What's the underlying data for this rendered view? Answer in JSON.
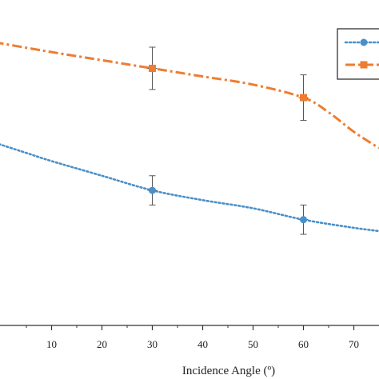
{
  "chart_data": {
    "type": "line",
    "title": "",
    "xlabel": "Incidence Angle (º)",
    "ylabel": "",
    "xlim": [
      -5,
      75
    ],
    "ylim": [
      0,
      1
    ],
    "x_ticks": [
      10,
      20,
      30,
      40,
      50,
      60,
      70
    ],
    "grid": false,
    "legend": {
      "position": "top-right",
      "entries": [
        "",
        ""
      ]
    },
    "series": [
      {
        "marker": "square",
        "color": "#ED7D31",
        "line_style": "dash-dot",
        "curve": {
          "x": [
            -5,
            10,
            20,
            30,
            40,
            50,
            60,
            65,
            70,
            75
          ],
          "y": [
            0.88,
            0.84,
            0.815,
            0.79,
            0.765,
            0.74,
            0.7,
            0.655,
            0.595,
            0.545
          ]
        },
        "points": [
          {
            "x": 30,
            "y": 0.79,
            "err_low": 0.065,
            "err_high": 0.065
          },
          {
            "x": 60,
            "y": 0.7,
            "err_low": 0.07,
            "err_high": 0.07
          }
        ]
      },
      {
        "marker": "circle",
        "color": "#4A90C8",
        "line_style": "dotted",
        "curve": {
          "x": [
            -5,
            5,
            10,
            20,
            30,
            40,
            50,
            60,
            70,
            75
          ],
          "y": [
            0.58,
            0.53,
            0.505,
            0.46,
            0.415,
            0.385,
            0.36,
            0.325,
            0.3,
            0.29
          ]
        },
        "points": [
          {
            "x": 30,
            "y": 0.415,
            "err_low": 0.045,
            "err_high": 0.045
          },
          {
            "x": 60,
            "y": 0.325,
            "err_low": 0.045,
            "err_high": 0.045
          }
        ]
      }
    ]
  }
}
